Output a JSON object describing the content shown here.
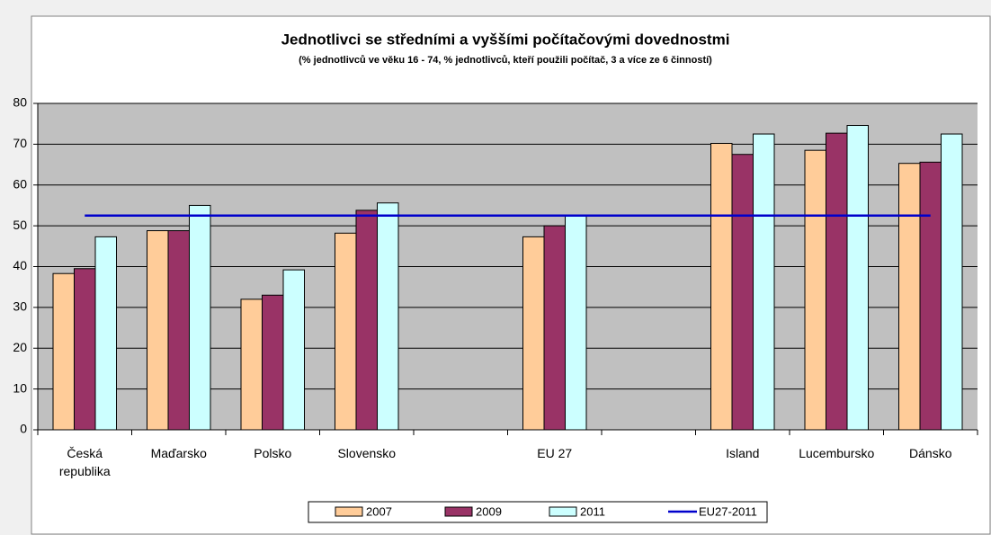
{
  "chart_data": {
    "type": "bar",
    "title": "Jednotlivci se středními a vyššími počítačovými dovednostmi",
    "subtitle": "(% jednotlivců ve věku 16 - 74, % jednotlivců, kteří použili počítač, 3 a více ze 6 činností)",
    "categories": [
      "Česká republika",
      "Maďarsko",
      "Polsko",
      "Slovensko",
      null,
      "EU 27",
      null,
      "Island",
      "Lucembursko",
      "Dánsko"
    ],
    "series": [
      {
        "name": "2007",
        "color": "#ffcc99",
        "values": [
          38.3,
          48.8,
          32,
          48.2,
          null,
          47.3,
          null,
          70.2,
          68.5,
          65.3
        ]
      },
      {
        "name": "2009",
        "color": "#993366",
        "values": [
          39.5,
          48.8,
          33,
          53.8,
          null,
          50,
          null,
          67.5,
          72.7,
          65.6
        ]
      },
      {
        "name": "2011",
        "color": "#ccffff",
        "values": [
          47.3,
          55,
          39.2,
          55.6,
          null,
          52.5,
          null,
          72.5,
          74.6,
          72.5
        ]
      },
      {
        "name": "EU27-2011",
        "type": "line",
        "color": "#0000cc",
        "values": [
          52.5,
          52.5,
          52.5,
          52.5,
          52.5,
          52.5,
          52.5,
          52.5,
          52.5,
          52.5
        ]
      }
    ],
    "ylim": [
      0,
      80
    ],
    "yticks": [
      0,
      10,
      20,
      30,
      40,
      50,
      60,
      70,
      80
    ],
    "grid": true,
    "legend": "bottom"
  }
}
